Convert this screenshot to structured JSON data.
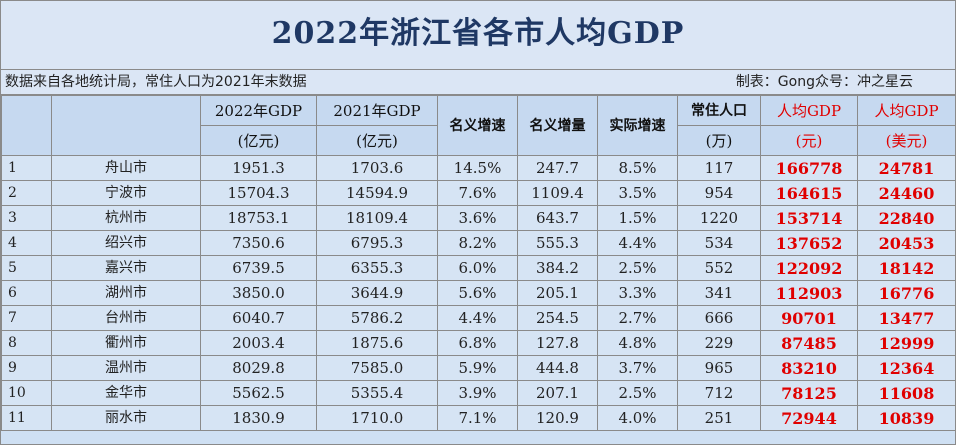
{
  "title": "2022年浙江省各市人均GDP",
  "source_note": "数据来自各地统计局，常住人口为2021年末数据",
  "maker_note": "制表：Gong众号：冲之星云",
  "headers": {
    "gdp2022_line1": "2022年GDP",
    "gdp2022_line2": "(亿元)",
    "gdp2021_line1": "2021年GDP",
    "gdp2021_line2": "(亿元)",
    "nominal_growth": "名义增速",
    "nominal_increase": "名义增量",
    "real_growth": "实际增速",
    "population_line1": "常住人口",
    "population_line2": "(万)",
    "per_capita_cny_line1": "人均GDP",
    "per_capita_cny_line2": "(元)",
    "per_capita_usd_line1": "人均GDP",
    "per_capita_usd_line2": "(美元)"
  },
  "rows": [
    {
      "rank": "1",
      "city": "舟山市",
      "gdp2022": "1951.3",
      "gdp2021": "1703.6",
      "nominal_growth": "14.5%",
      "nominal_increase": "247.7",
      "real_growth": "8.5%",
      "population": "117",
      "per_capita_cny": "166778",
      "per_capita_usd": "24781"
    },
    {
      "rank": "2",
      "city": "宁波市",
      "gdp2022": "15704.3",
      "gdp2021": "14594.9",
      "nominal_growth": "7.6%",
      "nominal_increase": "1109.4",
      "real_growth": "3.5%",
      "population": "954",
      "per_capita_cny": "164615",
      "per_capita_usd": "24460"
    },
    {
      "rank": "3",
      "city": "杭州市",
      "gdp2022": "18753.1",
      "gdp2021": "18109.4",
      "nominal_growth": "3.6%",
      "nominal_increase": "643.7",
      "real_growth": "1.5%",
      "population": "1220",
      "per_capita_cny": "153714",
      "per_capita_usd": "22840"
    },
    {
      "rank": "4",
      "city": "绍兴市",
      "gdp2022": "7350.6",
      "gdp2021": "6795.3",
      "nominal_growth": "8.2%",
      "nominal_increase": "555.3",
      "real_growth": "4.4%",
      "population": "534",
      "per_capita_cny": "137652",
      "per_capita_usd": "20453"
    },
    {
      "rank": "5",
      "city": "嘉兴市",
      "gdp2022": "6739.5",
      "gdp2021": "6355.3",
      "nominal_growth": "6.0%",
      "nominal_increase": "384.2",
      "real_growth": "2.5%",
      "population": "552",
      "per_capita_cny": "122092",
      "per_capita_usd": "18142"
    },
    {
      "rank": "6",
      "city": "湖州市",
      "gdp2022": "3850.0",
      "gdp2021": "3644.9",
      "nominal_growth": "5.6%",
      "nominal_increase": "205.1",
      "real_growth": "3.3%",
      "population": "341",
      "per_capita_cny": "112903",
      "per_capita_usd": "16776"
    },
    {
      "rank": "7",
      "city": "台州市",
      "gdp2022": "6040.7",
      "gdp2021": "5786.2",
      "nominal_growth": "4.4%",
      "nominal_increase": "254.5",
      "real_growth": "2.7%",
      "population": "666",
      "per_capita_cny": "90701",
      "per_capita_usd": "13477"
    },
    {
      "rank": "8",
      "city": "衢州市",
      "gdp2022": "2003.4",
      "gdp2021": "1875.6",
      "nominal_growth": "6.8%",
      "nominal_increase": "127.8",
      "real_growth": "4.8%",
      "population": "229",
      "per_capita_cny": "87485",
      "per_capita_usd": "12999"
    },
    {
      "rank": "9",
      "city": "温州市",
      "gdp2022": "8029.8",
      "gdp2021": "7585.0",
      "nominal_growth": "5.9%",
      "nominal_increase": "444.8",
      "real_growth": "3.7%",
      "population": "965",
      "per_capita_cny": "83210",
      "per_capita_usd": "12364"
    },
    {
      "rank": "10",
      "city": "金华市",
      "gdp2022": "5562.5",
      "gdp2021": "5355.4",
      "nominal_growth": "3.9%",
      "nominal_increase": "207.1",
      "real_growth": "2.5%",
      "population": "712",
      "per_capita_cny": "78125",
      "per_capita_usd": "11608"
    },
    {
      "rank": "11",
      "city": "丽水市",
      "gdp2022": "1830.9",
      "gdp2021": "1710.0",
      "nominal_growth": "7.1%",
      "nominal_increase": "120.9",
      "real_growth": "4.0%",
      "population": "251",
      "per_capita_cny": "72944",
      "per_capita_usd": "10839"
    }
  ],
  "colors": {
    "title_text": "#1f3864",
    "highlight_red": "#e00000",
    "cell_background": "#d6e4f4"
  }
}
